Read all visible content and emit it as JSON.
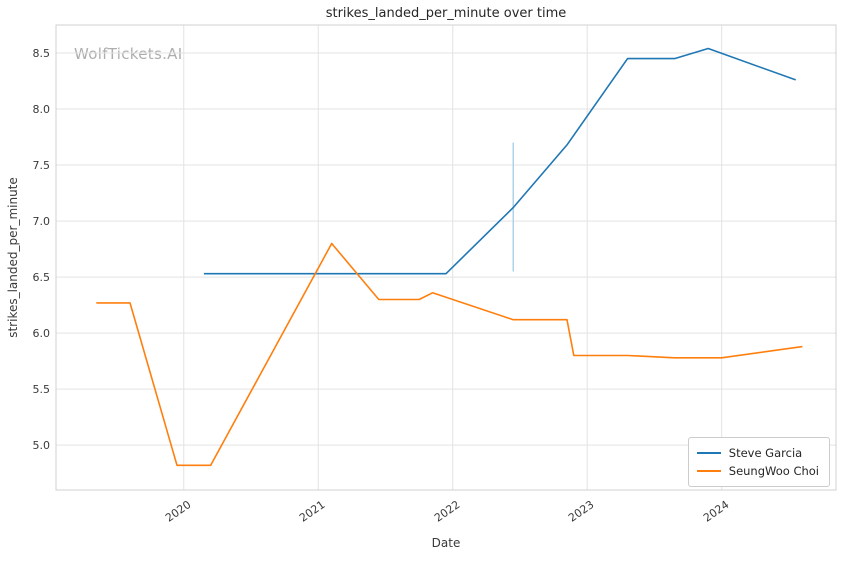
{
  "chart_data": {
    "type": "line",
    "title": "strikes_landed_per_minute over time",
    "xlabel": "Date",
    "ylabel": "strikes_landed_per_minute",
    "watermark": "WolfTickets.AI",
    "xlim": [
      2019.05,
      2024.85
    ],
    "ylim": [
      4.6,
      8.75
    ],
    "xticks": [
      2020,
      2021,
      2022,
      2023,
      2024
    ],
    "yticks": [
      5.0,
      5.5,
      6.0,
      6.5,
      7.0,
      7.5,
      8.0,
      8.5
    ],
    "grid": true,
    "legend_position": "lower right",
    "colors": {
      "grid": "#e3e3e3",
      "border": "#d0d0d0",
      "background": "#ffffff"
    },
    "series": [
      {
        "name": "Steve Garcia",
        "color": "#1f77b4",
        "x": [
          2020.15,
          2020.7,
          2021.1,
          2021.5,
          2021.95,
          2022.45,
          2022.85,
          2023.3,
          2023.65,
          2023.9,
          2024.55
        ],
        "y": [
          6.53,
          6.53,
          6.53,
          6.53,
          6.53,
          7.12,
          7.68,
          8.45,
          8.45,
          8.54,
          8.26
        ]
      },
      {
        "name": "SeungWoo Choi",
        "color": "#ff7f0e",
        "x": [
          2019.35,
          2019.6,
          2019.95,
          2020.2,
          2021.1,
          2021.45,
          2021.75,
          2021.85,
          2022.45,
          2022.85,
          2022.9,
          2023.3,
          2023.65,
          2024.0,
          2024.6
        ],
        "y": [
          6.27,
          6.27,
          4.82,
          4.82,
          6.8,
          6.3,
          6.3,
          6.36,
          6.12,
          6.12,
          5.8,
          5.8,
          5.78,
          5.78,
          5.88
        ]
      }
    ],
    "error_bar": {
      "x": 2022.45,
      "y_low": 6.55,
      "y_high": 7.7,
      "color": "#a8cfe8"
    }
  }
}
